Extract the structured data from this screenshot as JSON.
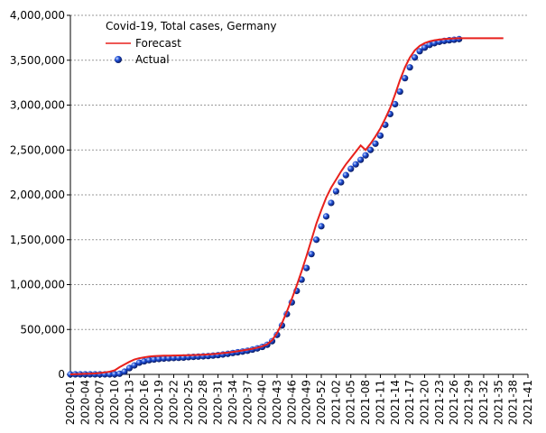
{
  "chart_data": {
    "type": "line",
    "legend_title": "Covid-19, Total cases, Germany",
    "categories": [
      "2020-01",
      null,
      null,
      "2020-04",
      null,
      null,
      "2020-07",
      null,
      null,
      "2020-10",
      null,
      null,
      "2020-13",
      null,
      null,
      "2020-16",
      null,
      null,
      "2020-19",
      null,
      null,
      "2020-22",
      null,
      null,
      "2020-25",
      null,
      null,
      "2020-28",
      null,
      null,
      "2020-31",
      null,
      null,
      "2020-34",
      null,
      null,
      "2020-37",
      null,
      null,
      "2020-40",
      null,
      null,
      "2020-43",
      null,
      null,
      "2020-46",
      null,
      null,
      "2020-49",
      null,
      null,
      "2020-52",
      null,
      null,
      "2021-02",
      null,
      null,
      "2021-05",
      null,
      null,
      "2021-08",
      null,
      null,
      "2021-11",
      null,
      null,
      "2021-14",
      null,
      null,
      "2021-17",
      null,
      null,
      "2021-20",
      null,
      null,
      "2021-23",
      null,
      null,
      "2021-26",
      null,
      null,
      "2021-29",
      null,
      null,
      "2021-32",
      null,
      null,
      "2021-35",
      null,
      null,
      "2021-38",
      null,
      null,
      "2021-41"
    ],
    "series": [
      {
        "name": "Forecast",
        "kind": "line",
        "color": "#e8211c",
        "values": [
          0,
          2000,
          4000,
          6000,
          8000,
          10000,
          15000,
          22000,
          30000,
          45000,
          80000,
          110000,
          140000,
          165000,
          180000,
          190000,
          198000,
          203000,
          206000,
          208000,
          209000,
          210000,
          211000,
          212000,
          213000,
          215000,
          217000,
          219000,
          222000,
          226000,
          231000,
          237000,
          243000,
          250000,
          258000,
          266000,
          275000,
          285000,
          297000,
          312000,
          335000,
          380000,
          460000,
          570000,
          700000,
          840000,
          990000,
          1150000,
          1320000,
          1500000,
          1680000,
          1830000,
          1970000,
          2080000,
          2170000,
          2260000,
          2340000,
          2410000,
          2480000,
          2550000,
          2500000,
          2570000,
          2650000,
          2740000,
          2850000,
          2970000,
          3120000,
          3280000,
          3420000,
          3530000,
          3610000,
          3660000,
          3690000,
          3710000,
          3722000,
          3730000,
          3736000,
          3740000,
          3743000,
          3745000,
          3745000,
          3745000,
          3745000,
          3745000,
          3745000,
          3745000,
          3745000,
          3745000,
          3745000,
          null,
          null,
          null,
          null,
          null
        ]
      },
      {
        "name": "Actual",
        "kind": "scatter",
        "color": "#1f4fd8",
        "values": [
          0,
          0,
          0,
          0,
          0,
          0,
          0,
          0,
          100,
          1000,
          7000,
          30000,
          70000,
          100000,
          130000,
          145000,
          158000,
          165000,
          171000,
          176000,
          179000,
          182000,
          184000,
          187000,
          192000,
          195000,
          198000,
          201000,
          204000,
          209000,
          214000,
          221000,
          229000,
          238000,
          246000,
          254000,
          263000,
          276000,
          289000,
          306000,
          330000,
          370000,
          440000,
          545000,
          672000,
          802000,
          930000,
          1055000,
          1185000,
          1340000,
          1500000,
          1650000,
          1760000,
          1910000,
          2040000,
          2140000,
          2220000,
          2290000,
          2340000,
          2390000,
          2440000,
          2500000,
          2570000,
          2660000,
          2780000,
          2900000,
          3010000,
          3150000,
          3300000,
          3420000,
          3530000,
          3600000,
          3640000,
          3670000,
          3690000,
          3705000,
          3715000,
          3722000,
          3728000,
          3735000,
          null,
          null,
          null,
          null,
          null,
          null,
          null,
          null,
          null,
          null,
          null,
          null,
          null,
          null
        ]
      }
    ],
    "ylim": [
      0,
      4000000
    ],
    "yticks": [
      0,
      {
        "value": 500000,
        "label": "500,000"
      },
      {
        "value": 1000000,
        "label": "1,000,000"
      },
      {
        "value": 1500000,
        "label": "1,500,000"
      },
      {
        "value": 2000000,
        "label": "2,000,000"
      },
      {
        "value": 2500000,
        "label": "2,500,000"
      },
      {
        "value": 3000000,
        "label": "3,000,000"
      },
      {
        "value": 3500000,
        "label": "3,500,000"
      },
      {
        "value": 4000000,
        "label": "4,000,000"
      }
    ],
    "grid": true
  }
}
